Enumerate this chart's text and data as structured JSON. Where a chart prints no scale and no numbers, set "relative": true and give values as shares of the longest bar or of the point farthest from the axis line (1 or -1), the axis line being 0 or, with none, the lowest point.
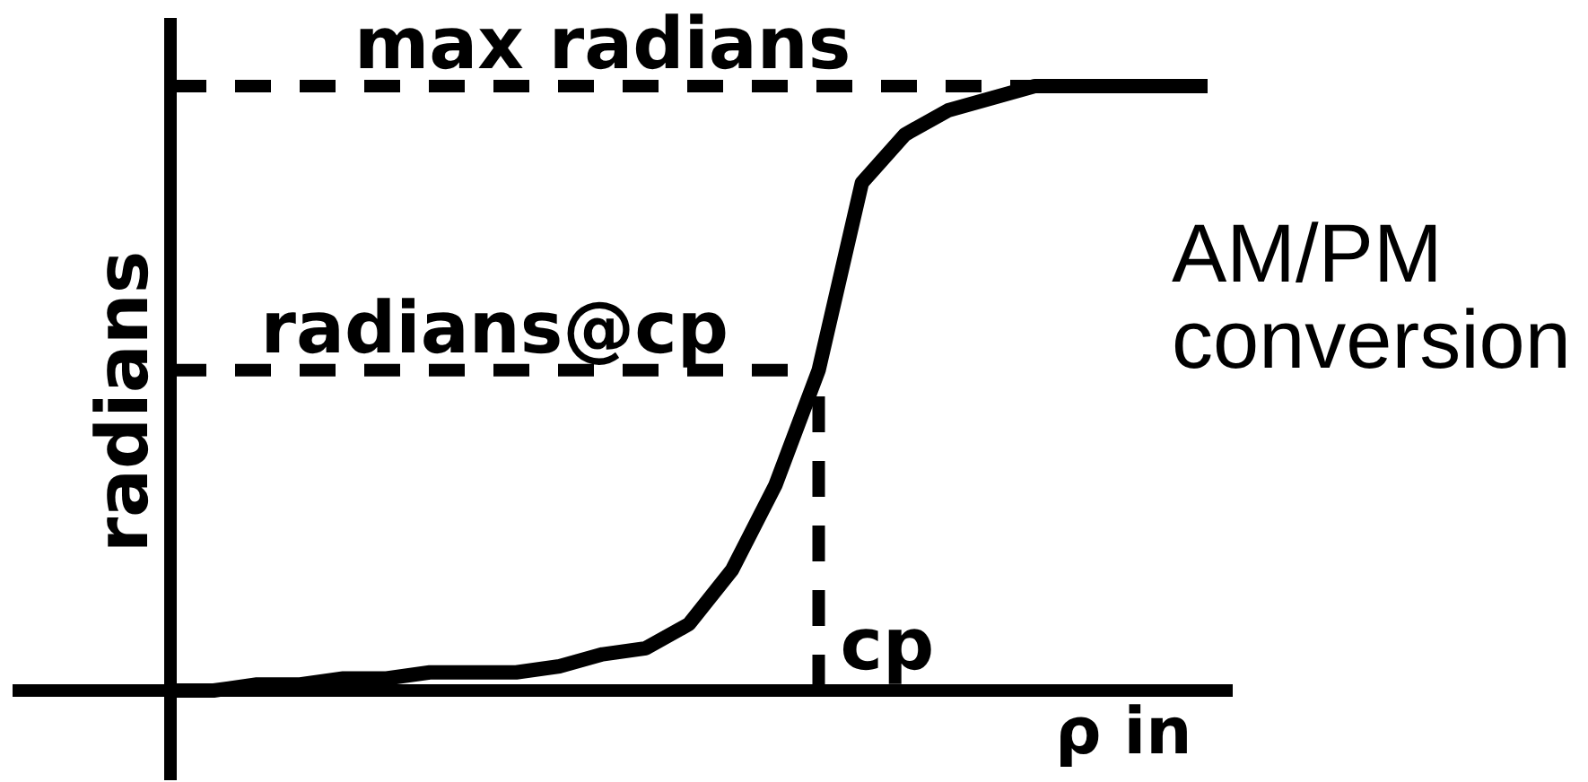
{
  "chart_data": {
    "type": "line",
    "title": "AM/PM conversion",
    "xlabel": "ρ in",
    "ylabel": "radians",
    "relative": true,
    "categories": [
      null,
      null,
      null,
      null,
      null,
      null,
      null,
      null,
      null,
      null,
      null,
      null,
      null,
      null,
      null,
      null,
      null,
      null,
      null,
      null,
      null,
      null,
      null,
      null,
      null
    ],
    "series": [
      {
        "color": "#000000",
        "values": [
          0,
          0,
          0.01,
          0.01,
          0.02,
          0.02,
          0.03,
          0.03,
          0.03,
          0.04,
          0.06,
          0.07,
          0.11,
          0.2,
          0.34,
          0.53,
          0.84,
          0.92,
          0.96,
          0.98,
          1,
          1,
          1,
          1,
          1
        ]
      }
    ],
    "ref_lines": [
      {
        "axis": "y",
        "value": 1,
        "label": "max radians",
        "color": "#000000",
        "line_style": "dashed"
      },
      {
        "axis": "y",
        "value": 0.53,
        "label": "radians@cp",
        "color": "#000000",
        "line_style": "dashed"
      }
    ],
    "annotations": [
      "cp"
    ]
  }
}
